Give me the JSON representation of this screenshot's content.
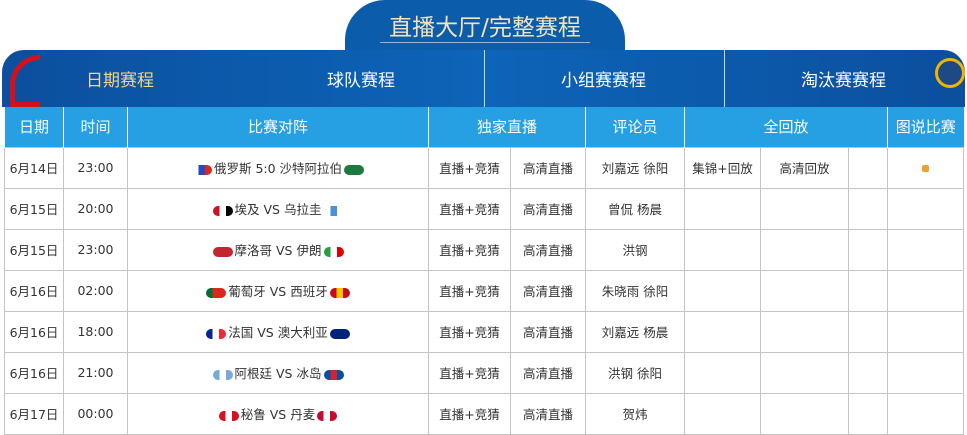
{
  "header": {
    "title": "直播大厅/完整赛程",
    "nav": [
      {
        "label": "日期赛程",
        "active": true
      },
      {
        "label": "球队赛程"
      },
      {
        "label": "小组赛赛程"
      },
      {
        "label": "淘汰赛赛程"
      }
    ]
  },
  "table": {
    "headers": [
      "日期",
      "时间",
      "比赛对阵",
      "独家直播",
      "评论员",
      "全回放",
      "图说比赛"
    ],
    "rows": [
      {
        "date": "6月14日",
        "time": "23:00",
        "home": "俄罗斯",
        "score": "5:0",
        "away": "沙特阿拉伯",
        "hf": "#fff,#2a46c4,#d52b1e",
        "af": "#1d7a3e,#1d7a3e,#1d7a3e",
        "live": "直播+竞猜",
        "hd": "高清直播",
        "comm": "刘嘉远 徐阳",
        "r1": "集锦+回放",
        "r2": "高清回放",
        "pic": true
      },
      {
        "date": "6月15日",
        "time": "20:00",
        "home": "埃及",
        "score": "VS",
        "away": "乌拉圭",
        "hf": "#ce1126,#fff,#000",
        "af": "#fff,#4a90d9,#fff",
        "live": "直播+竞猜",
        "hd": "高清直播",
        "comm": "曾侃 杨晨"
      },
      {
        "date": "6月15日",
        "time": "23:00",
        "home": "摩洛哥",
        "score": "VS",
        "away": "伊朗",
        "hf": "#c1272d,#c1272d,#c1272d",
        "af": "#239f40,#fff,#da0000",
        "live": "直播+竞猜",
        "hd": "高清直播",
        "comm": "洪钢"
      },
      {
        "date": "6月16日",
        "time": "02:00",
        "home": "葡萄牙",
        "score": "VS",
        "away": "西班牙",
        "hf": "#046a38,#da291c,#da291c",
        "af": "#c60b1e,#ffc400,#c60b1e",
        "live": "直播+竞猜",
        "hd": "高清直播",
        "comm": "朱晓雨 徐阳"
      },
      {
        "date": "6月16日",
        "time": "18:00",
        "home": "法国",
        "score": "VS",
        "away": "澳大利亚",
        "hf": "#002395,#fff,#ed2939",
        "af": "#00247d,#00247d,#00247d",
        "live": "直播+竞猜",
        "hd": "高清直播",
        "comm": "刘嘉远 杨晨"
      },
      {
        "date": "6月16日",
        "time": "21:00",
        "home": "阿根廷",
        "score": "VS",
        "away": "冰岛",
        "hf": "#75aadb,#fff,#75aadb",
        "af": "#02529c,#dc1e35,#02529c",
        "live": "直播+竞猜",
        "hd": "高清直播",
        "comm": "洪钢 徐阳"
      },
      {
        "date": "6月17日",
        "time": "00:00",
        "home": "秘鲁",
        "score": "VS",
        "away": "丹麦",
        "hf": "#d91023,#fff,#d91023",
        "af": "#c60c30,#fff,#c60c30",
        "live": "直播+竞猜",
        "hd": "高清直播",
        "comm": "贺炜"
      }
    ]
  },
  "colors": {
    "header_bg": "#26a0e2",
    "banner_bg": "#0b5cab",
    "title": "#f3e3bd",
    "active_nav": "#f3d58a"
  }
}
